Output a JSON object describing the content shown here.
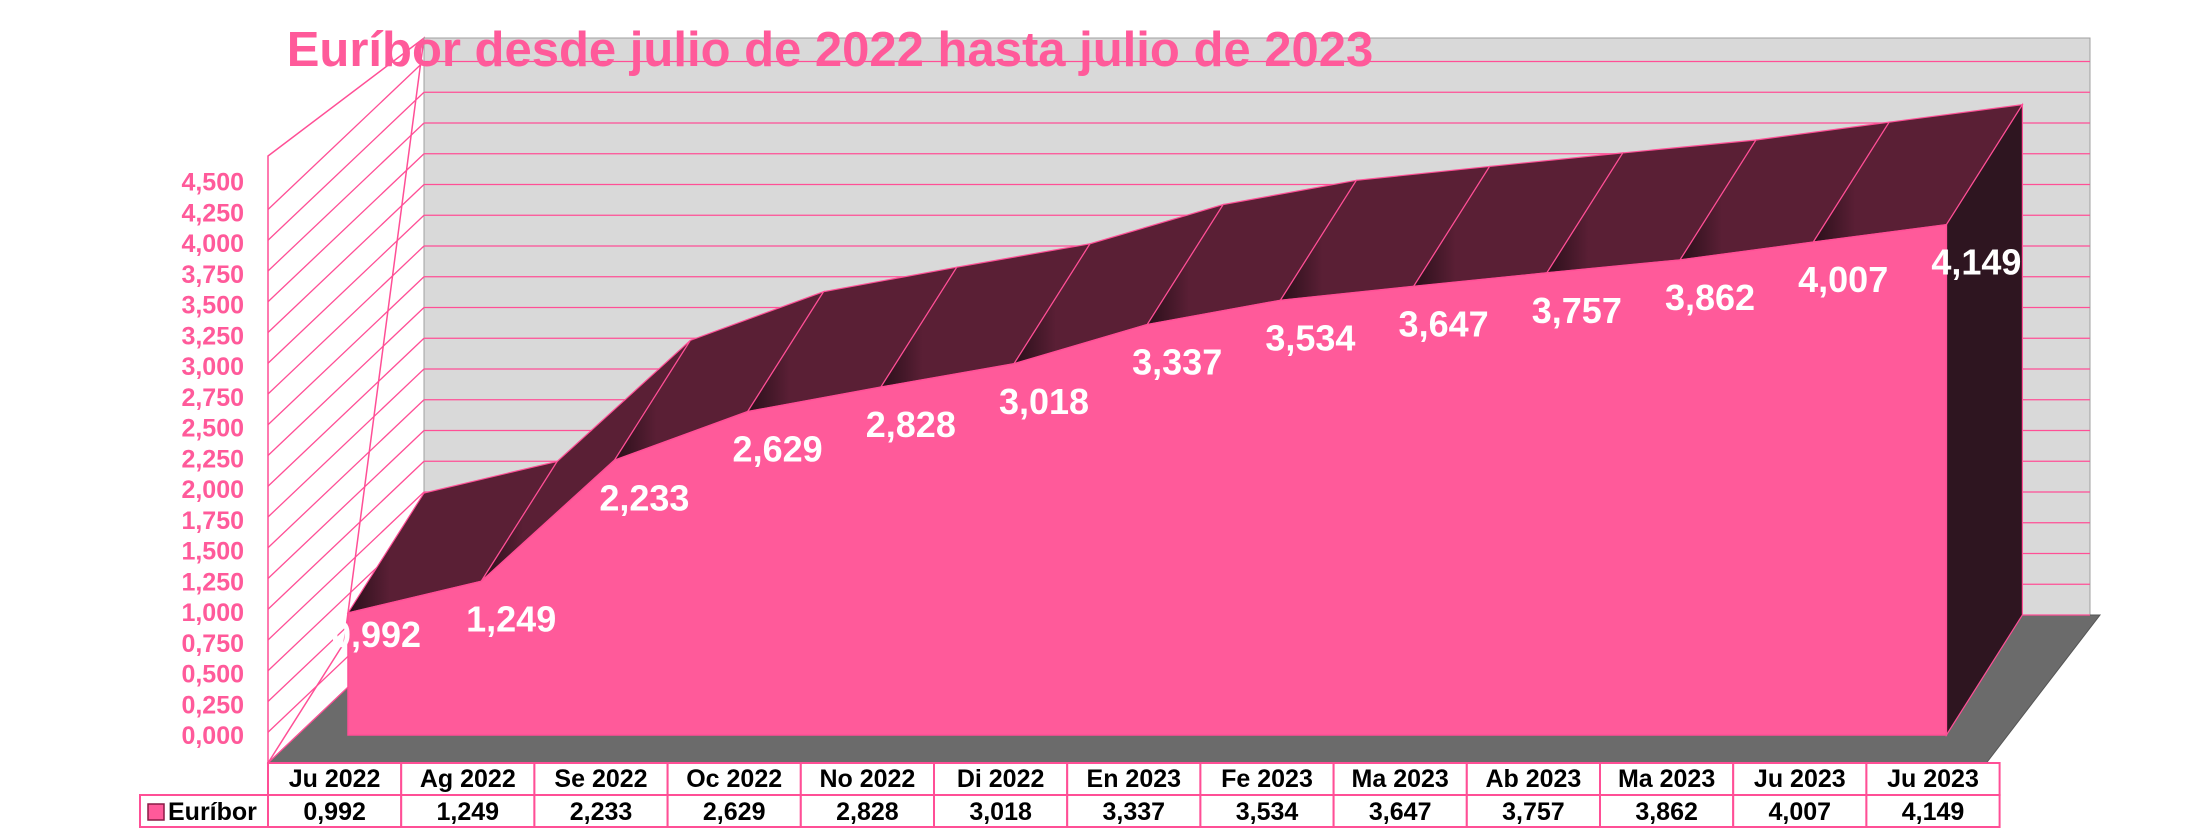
{
  "chart_data": {
    "type": "area",
    "title": "Euríbor desde julio de 2022 hasta julio de 2023",
    "categories": [
      "Ju 2022",
      "Ag 2022",
      "Se 2022",
      "Oc 2022",
      "No 2022",
      "Di 2022",
      "En 2023",
      "Fe 2023",
      "Ma 2023",
      "Ab 2023",
      "Ma 2023",
      "Ju 2023",
      "Ju 2023"
    ],
    "series": [
      {
        "name": "Euríbor",
        "values": [
          0.992,
          1.249,
          2.233,
          2.629,
          2.828,
          3.018,
          3.337,
          3.534,
          3.647,
          3.757,
          3.862,
          4.007,
          4.149
        ],
        "labels": [
          "0,992",
          "1,249",
          "2,233",
          "2,629",
          "2,828",
          "3,018",
          "3,337",
          "3,534",
          "3,647",
          "3,757",
          "3,862",
          "4,007",
          "4,149"
        ],
        "color": "#ff5a9a"
      }
    ],
    "y_ticks": [
      "0,000",
      "0,250",
      "0,500",
      "0,750",
      "1,000",
      "1,250",
      "1,500",
      "1,750",
      "2,000",
      "2,250",
      "2,500",
      "2,750",
      "3,000",
      "3,250",
      "3,500",
      "3,750",
      "4,000",
      "4,250",
      "4,500"
    ],
    "ylim": [
      0,
      4.5
    ],
    "grid": true,
    "legend": "data-table",
    "three_d": true,
    "colors": {
      "title": "#ff5a9a",
      "axis_text": "#ff5a9a",
      "area_front": "#ff5a9a",
      "area_top": "#5a1f35",
      "area_side": "#2e1520",
      "wall": "#d9d9d9",
      "floor": "#6b6b6b",
      "grid": "#ff4f96",
      "table_border": "#ff4f96"
    }
  }
}
